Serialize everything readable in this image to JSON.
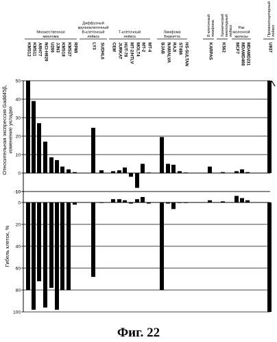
{
  "caption": "Фиг. 22",
  "groups": [
    {
      "label_lines": [
        "Множественная",
        "миелома"
      ]
    },
    {
      "label_lines": [
        "Диффузный",
        "крупноклеточный",
        "В-клеточный",
        "лейкоз"
      ]
    },
    {
      "label_lines": [
        "Т-клеточный",
        "лейкоз"
      ]
    },
    {
      "label_lines": [
        "Лимфома",
        "Беркетта"
      ]
    },
    {
      "label_lines": [
        "В-клеточный",
        "лимфома"
      ]
    },
    {
      "label_lines": [
        "Хронический",
        "миелоидный",
        "лейкоз"
      ]
    },
    {
      "label_lines": [
        "Рак",
        "молочной",
        "железы"
      ]
    },
    {
      "label_lines": [
        "Промиелоцитарный",
        "лейкоз"
      ]
    }
  ],
  "chart_data": [
    {
      "type": "bar",
      "ylabel_lines": [
        "Относительная экспрессия Gadd45β,",
        "изменение укладки"
      ],
      "ylim": [
        -10,
        50
      ],
      "yticks": [
        50,
        40,
        30,
        20,
        10,
        0,
        -10
      ],
      "grid": true,
      "categories": [
        "KMS12",
        "KMS11",
        "ARH77",
        "NCI-H929",
        "U266",
        "JJN3",
        "KMS18",
        "KMS27",
        "RPMI",
        "LY3",
        "SUDHL6",
        "CEM",
        "JURKAT",
        "HUT-78",
        "MT-2/HTLV",
        "MOLT4",
        "MT-2",
        "MT-4",
        "BJAB",
        "NAMALVA",
        "RAJI",
        "ST486",
        "HS-SULTAN",
        "KARPAS",
        "K562",
        "MCF7",
        "MDAMD468",
        "MDAMD231",
        "U937"
      ],
      "values": [
        50,
        39,
        27,
        17,
        8.5,
        7,
        3.5,
        2,
        0.5,
        24.5,
        1.5,
        1,
        1.5,
        3,
        -2,
        -8,
        5,
        0.3,
        19.5,
        5,
        4.5,
        1,
        0.3,
        3.5,
        0.5,
        1,
        2,
        0.5,
        50
      ]
    },
    {
      "type": "bar",
      "ylabel_lines": [
        "Гибель клеток, %"
      ],
      "ylim": [
        -10,
        100
      ],
      "yticks": [
        -10,
        0,
        20,
        40,
        60,
        80,
        100
      ],
      "grid": true,
      "categories": [
        "KMS12",
        "KMS11",
        "ARH77",
        "NCI-H929",
        "U266",
        "JJN3",
        "KMS18",
        "KMS27",
        "RPMI",
        "LY3",
        "SUDHL6",
        "CEM",
        "JURKAT",
        "HUT-78",
        "MT-2/HTLV",
        "MOLT4",
        "MT-2",
        "MT-4",
        "BJAB",
        "NAMALVA",
        "RAJI",
        "ST486",
        "HS-SULTAN",
        "KARPAS",
        "K562",
        "MCF7",
        "MDAMD468",
        "MDAMD231",
        "U937"
      ],
      "values": [
        80,
        98,
        72,
        96,
        78,
        98,
        80,
        80,
        2,
        68,
        0,
        -3,
        -3,
        -2,
        1,
        -3,
        -5,
        1,
        80,
        1,
        6,
        0,
        0,
        -2,
        -1,
        -6,
        -4,
        -2,
        100
      ]
    }
  ]
}
